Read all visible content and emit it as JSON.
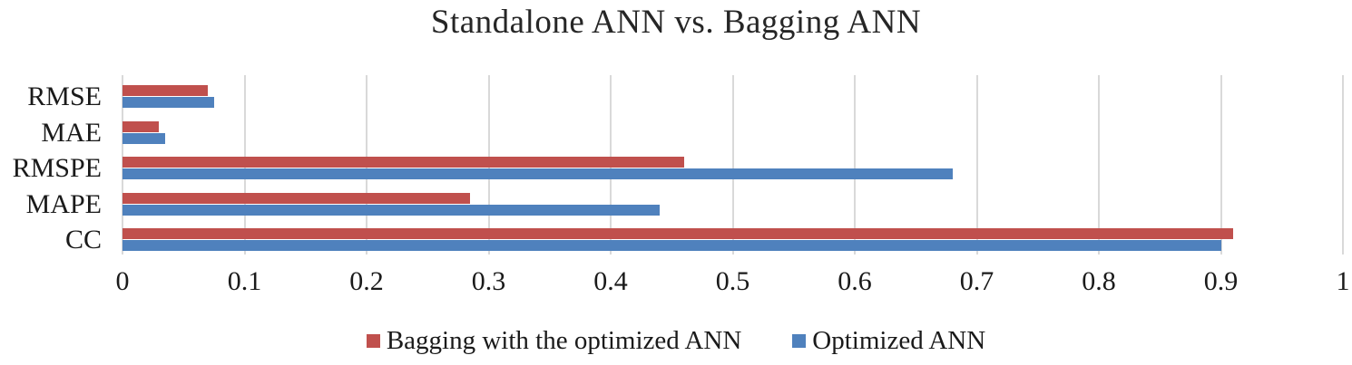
{
  "title": "Standalone ANN vs. Bagging ANN",
  "colors": {
    "bagging_red": "#C0504D",
    "optimized_blue": "#4F81BD",
    "gridline": "#D9D9D9",
    "text": "#1A1A1A"
  },
  "chart_data": {
    "type": "bar",
    "orientation": "horizontal",
    "title": "Standalone ANN vs. Bagging ANN",
    "categories": [
      "RMSE",
      "MAE",
      "RMSPE",
      "MAPE",
      "CC"
    ],
    "series": [
      {
        "name": "Bagging with the optimized ANN",
        "color": "#C0504D",
        "values": [
          0.07,
          0.03,
          0.46,
          0.285,
          0.91
        ]
      },
      {
        "name": "Optimized ANN",
        "color": "#4F81BD",
        "values": [
          0.075,
          0.035,
          0.68,
          0.44,
          0.9
        ]
      }
    ],
    "xlim": [
      0,
      1
    ],
    "x_ticks": [
      "0",
      "0.1",
      "0.2",
      "0.3",
      "0.4",
      "0.5",
      "0.6",
      "0.7",
      "0.8",
      "0.9",
      "1"
    ],
    "grid": "vertical-only",
    "legend_position": "bottom-center",
    "bar_order_per_category": "first series on top, second below"
  }
}
